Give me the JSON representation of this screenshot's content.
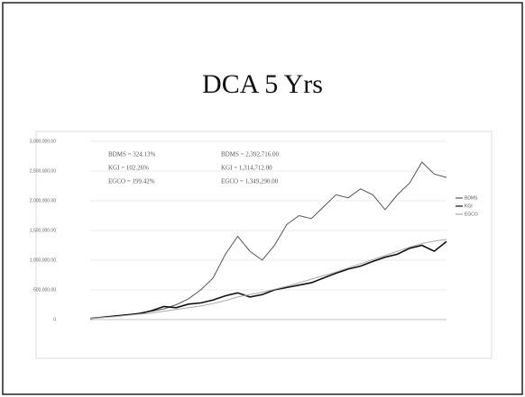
{
  "chart_data": {
    "type": "line",
    "title": "DCA 5 Yrs",
    "categories": [
      null,
      null,
      null,
      null,
      null,
      null,
      null,
      null,
      null,
      null,
      null,
      null,
      null,
      null,
      null,
      null,
      null,
      null,
      null,
      null,
      null,
      null,
      null,
      null,
      null,
      null,
      null,
      null,
      null,
      null
    ],
    "series": [
      {
        "name": "BDMS",
        "color": "#555555",
        "values": [
          20000,
          40000,
          60000,
          80000,
          110000,
          140000,
          180000,
          250000,
          350000,
          500000,
          700000,
          1100000,
          1400000,
          1150000,
          1000000,
          1250000,
          1600000,
          1750000,
          1700000,
          1900000,
          2100000,
          2050000,
          2200000,
          2100000,
          1850000,
          2100000,
          2300000,
          2650000,
          2450000,
          2392716
        ]
      },
      {
        "name": "KGI",
        "color": "#111111",
        "values": [
          20000,
          40000,
          60000,
          80000,
          100000,
          150000,
          220000,
          200000,
          260000,
          280000,
          330000,
          400000,
          450000,
          380000,
          420000,
          500000,
          540000,
          580000,
          620000,
          700000,
          780000,
          850000,
          900000,
          980000,
          1050000,
          1100000,
          1200000,
          1250000,
          1150000,
          1314712
        ]
      },
      {
        "name": "EGCO",
        "color": "#aaaaaa",
        "values": [
          20000,
          35000,
          50000,
          70000,
          90000,
          110000,
          140000,
          170000,
          200000,
          230000,
          270000,
          320000,
          380000,
          420000,
          460000,
          510000,
          560000,
          620000,
          680000,
          740000,
          800000,
          870000,
          940000,
          1010000,
          1080000,
          1150000,
          1220000,
          1280000,
          1320000,
          1349290
        ]
      }
    ],
    "annotations": [
      "BDMS = 324.13%",
      "KGI = 102.26%",
      "EGCO = 199.42%",
      "BDMS = 2,392,716.00",
      "KGI = 1,314,712.00",
      "EGCO = 1,349,290.00"
    ],
    "ylim": [
      0,
      3000000
    ],
    "yticks": [
      0,
      {
        "value": 500000,
        "label": "500,000.00"
      },
      {
        "value": 1000000,
        "label": "1,000,000.00"
      },
      {
        "value": 1500000,
        "label": "1,500,000.00"
      },
      {
        "value": 2000000,
        "label": "2,000,000.00"
      },
      {
        "value": 2500000,
        "label": "2,500,000.00"
      },
      {
        "value": 3000000,
        "label": "3,000,000.00"
      }
    ],
    "grid": true,
    "legend": "right"
  }
}
